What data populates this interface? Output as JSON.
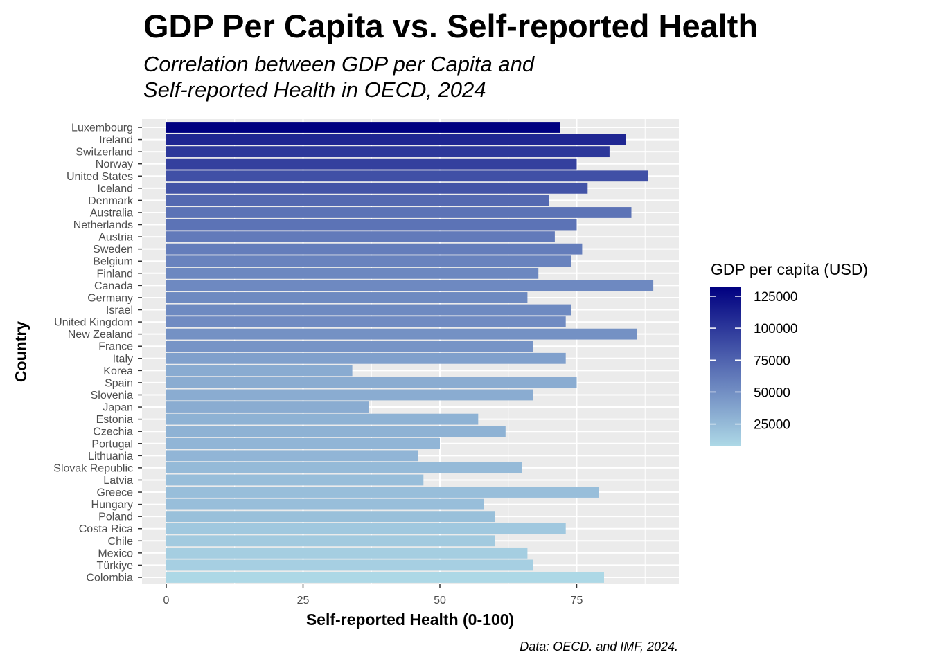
{
  "chart_data": {
    "type": "bar",
    "orientation": "horizontal",
    "title": "GDP Per Capita vs. Self-reported Health",
    "subtitle_lines": [
      "Correlation between GDP per Capita and",
      "Self-reported Health in OECD, 2024"
    ],
    "caption": "Data: OECD. and IMF, 2024.",
    "xlabel": "Self-reported Health (0-100)",
    "ylabel": "Country",
    "xlim": [
      0,
      93
    ],
    "x_ticks": [
      0,
      25,
      50,
      75
    ],
    "grid": true,
    "legend": {
      "title": "GDP per capita (USD)",
      "placement": "right",
      "ticks": [
        125000,
        100000,
        75000,
        50000,
        25000
      ],
      "range": [
        8000,
        132000
      ],
      "low_color": "#ADD8E6",
      "high_color": "#000080"
    },
    "categories": [
      "Luxembourg",
      "Ireland",
      "Switzerland",
      "Norway",
      "United States",
      "Iceland",
      "Denmark",
      "Australia",
      "Netherlands",
      "Austria",
      "Sweden",
      "Belgium",
      "Finland",
      "Canada",
      "Germany",
      "Israel",
      "United Kingdom",
      "New Zealand",
      "France",
      "Italy",
      "Korea",
      "Spain",
      "Slovenia",
      "Japan",
      "Estonia",
      "Czechia",
      "Portugal",
      "Lithuania",
      "Slovak Republic",
      "Latvia",
      "Greece",
      "Hungary",
      "Poland",
      "Costa Rica",
      "Chile",
      "Mexico",
      "Türkiye",
      "Colombia"
    ],
    "series": [
      {
        "name": "Self-reported Health",
        "values": [
          72,
          84,
          81,
          75,
          88,
          77,
          70,
          85,
          75,
          71,
          76,
          74,
          68,
          89,
          66,
          74,
          73,
          86,
          67,
          73,
          34,
          75,
          67,
          37,
          57,
          62,
          50,
          46,
          65,
          47,
          79,
          58,
          60,
          73,
          60,
          66,
          67,
          80
        ]
      },
      {
        "name": "GDP per capita (USD)",
        "values": [
          132000,
          110000,
          100000,
          95000,
          86000,
          84000,
          72000,
          66000,
          66000,
          62000,
          60000,
          57000,
          54000,
          53500,
          53000,
          53000,
          52000,
          49000,
          47000,
          40000,
          34000,
          33000,
          33000,
          33000,
          30000,
          30000,
          28000,
          28000,
          25000,
          23000,
          23000,
          23000,
          22000,
          17000,
          16000,
          14000,
          13000,
          8000
        ]
      }
    ]
  }
}
